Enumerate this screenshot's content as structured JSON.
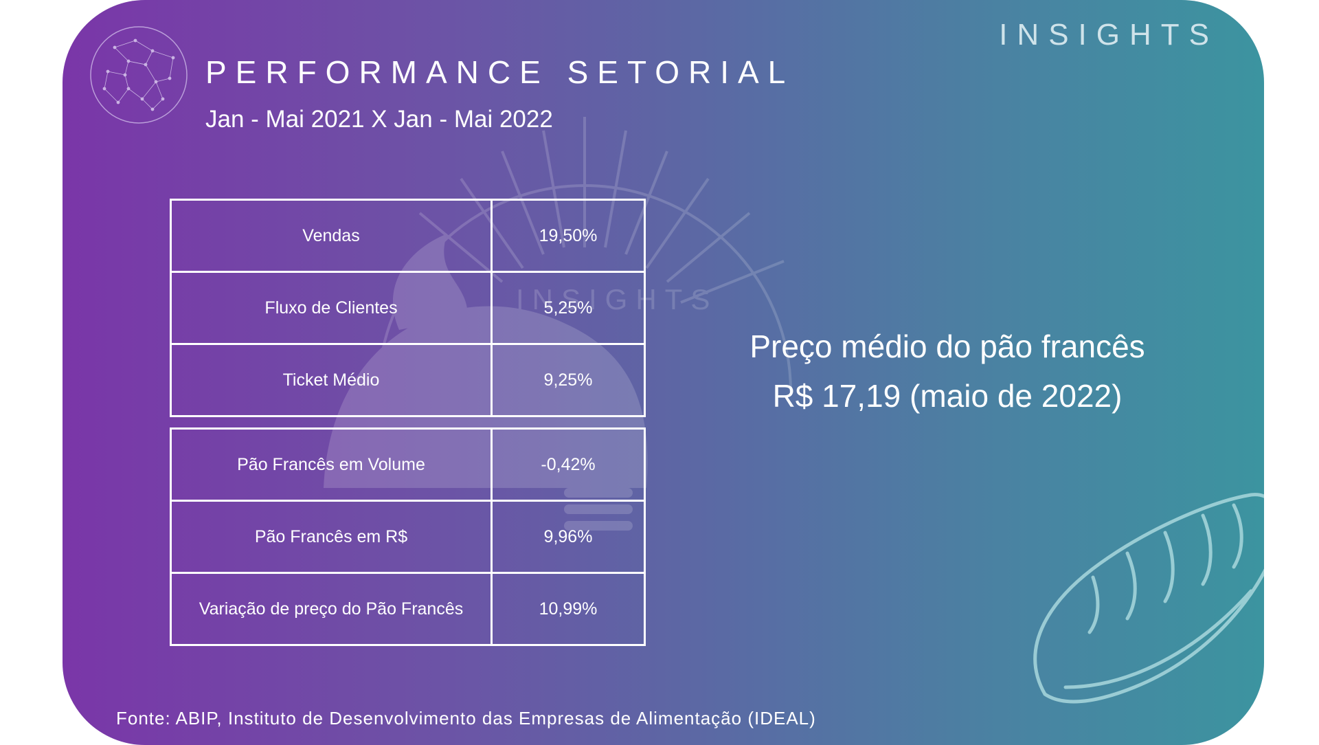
{
  "brand": {
    "badge": "INSIGHTS",
    "watermark": "INSIGHTS"
  },
  "header": {
    "title": "PERFORMANCE SETORIAL",
    "subtitle": "Jan - Mai 2021 X Jan - Mai 2022"
  },
  "table_general": [
    {
      "label": "Vendas",
      "value": "19,50%"
    },
    {
      "label": "Fluxo de Clientes",
      "value": "5,25%"
    },
    {
      "label": "Ticket Médio",
      "value": "9,25%"
    }
  ],
  "table_bread": [
    {
      "label": "Pão Francês em Volume",
      "value": "-0,42%"
    },
    {
      "label": "Pão Francês em R$",
      "value": "9,96%"
    },
    {
      "label": "Variação de preço do Pão Francês",
      "value": "10,99%"
    }
  ],
  "highlight": {
    "line1": "Preço médio do pão francês",
    "line2": "R$ 17,19 (maio de 2022)"
  },
  "footer": {
    "source": "Fonte: ABIP, Instituto de Desenvolvimento das Empresas de Alimentação (IDEAL)"
  },
  "colors": {
    "gradient_start": "#7a36a8",
    "gradient_end": "#3c94a0",
    "text": "#ffffff",
    "badge": "#cfe3ea"
  },
  "icons": [
    "globe-network-icon",
    "bread-loaf-icon",
    "bakery-watermark-icon"
  ]
}
